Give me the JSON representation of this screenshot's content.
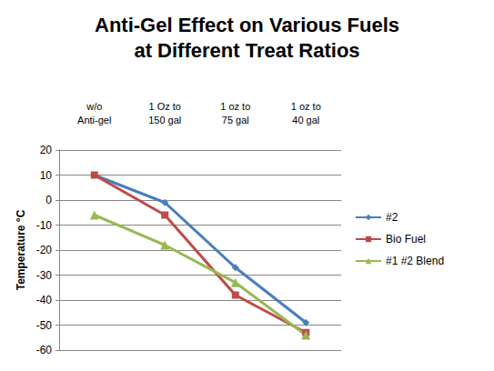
{
  "chart_data": {
    "type": "line",
    "title": "Anti-Gel Effect on Various Fuels\nat Different Treat Ratios",
    "categories": [
      "w/o\nAnti-gel",
      "1 Oz to\n150 gal",
      "1 oz to\n75 gal",
      "1 oz to\n40 gal"
    ],
    "series": [
      {
        "name": "#2",
        "color": "#4a7ebb",
        "marker": "diamond",
        "values": [
          10,
          -1,
          -27,
          -49
        ]
      },
      {
        "name": "Bio Fuel",
        "color": "#be4b48",
        "marker": "square",
        "values": [
          10,
          -6,
          -38,
          -53
        ]
      },
      {
        "name": "#1 #2 Blend",
        "color": "#98b954",
        "marker": "triangle",
        "values": [
          -6,
          -18,
          -33,
          -54
        ]
      }
    ],
    "ylabel": "Temperature °C",
    "ylim": [
      -60,
      20
    ],
    "yticks": [
      -60,
      -50,
      -40,
      -30,
      -20,
      -10,
      0,
      10,
      20
    ],
    "grid": true,
    "legend": "right"
  }
}
